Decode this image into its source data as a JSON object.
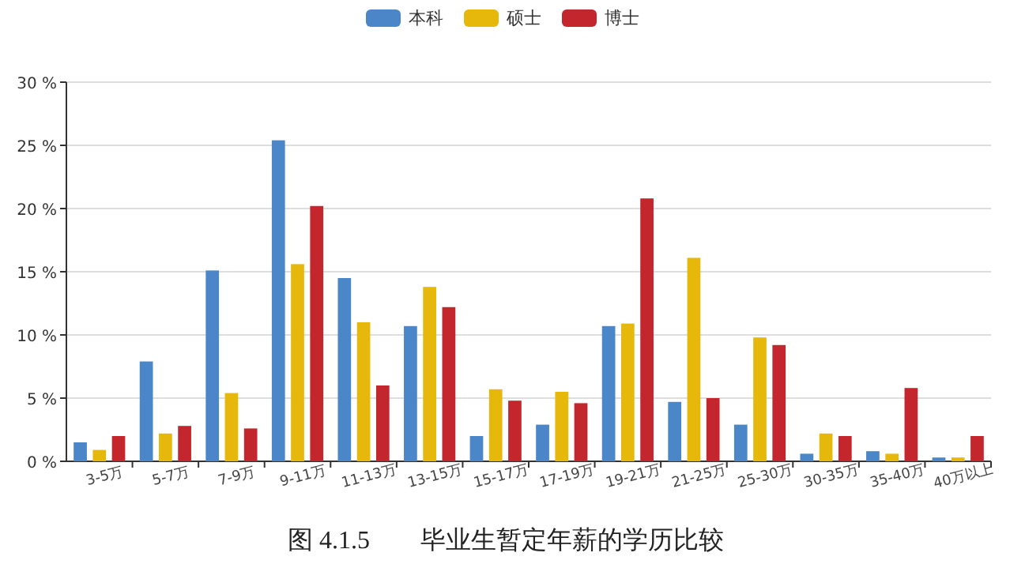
{
  "chart_data": {
    "type": "bar",
    "title": "图 4.1.5　　毕业生暂定年薪的学历比较",
    "categories": [
      "3-5万",
      "5-7万",
      "7-9万",
      "9-11万",
      "11-13万",
      "13-15万",
      "15-17万",
      "17-19万",
      "19-21万",
      "21-25万",
      "25-30万",
      "30-35万",
      "35-40万",
      "40万以上"
    ],
    "series": [
      {
        "name": "本科",
        "color": "#4a86c8",
        "values": [
          1.5,
          7.9,
          15.1,
          25.4,
          14.5,
          10.7,
          2.0,
          2.9,
          10.7,
          4.7,
          2.9,
          0.6,
          0.8,
          0.3
        ]
      },
      {
        "name": "硕士",
        "color": "#e6b80c",
        "values": [
          0.9,
          2.2,
          5.4,
          15.6,
          11.0,
          13.8,
          5.7,
          5.5,
          10.9,
          16.1,
          9.8,
          2.2,
          0.6,
          0.3
        ]
      },
      {
        "name": "博士",
        "color": "#c4262e",
        "values": [
          2.0,
          2.8,
          2.6,
          20.2,
          6.0,
          12.2,
          4.8,
          4.6,
          20.8,
          5.0,
          9.2,
          2.0,
          5.8,
          2.0
        ]
      }
    ],
    "ylim": [
      0,
      30
    ],
    "yticks": [
      {
        "value": 0,
        "label": "0 %"
      },
      {
        "value": 5,
        "label": "5 %"
      },
      {
        "value": 10,
        "label": "10 %"
      },
      {
        "value": 15,
        "label": "15 %"
      },
      {
        "value": 20,
        "label": "20 %"
      },
      {
        "value": 25,
        "label": "25 %"
      },
      {
        "value": 30,
        "label": "30 %"
      }
    ],
    "grid": "y",
    "legend": "top"
  }
}
